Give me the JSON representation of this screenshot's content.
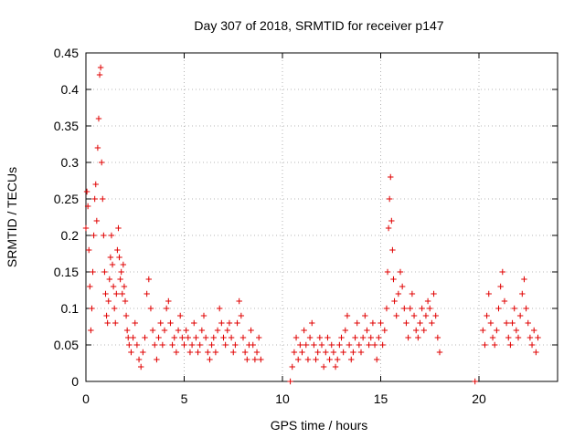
{
  "chart_data": {
    "type": "scatter",
    "title": "Day 307 of 2018, SRMTID for receiver p147",
    "xlabel": "GPS time / hours",
    "ylabel": "SRMTID / TECUs",
    "xlim": [
      0,
      24
    ],
    "ylim": [
      0,
      0.45
    ],
    "grid": true,
    "x_ticks": [
      0,
      5,
      10,
      15,
      20
    ],
    "x_tick_labels": [
      "0",
      "5",
      "10",
      "15",
      "20"
    ],
    "y_ticks": [
      0,
      0.05,
      0.1,
      0.15,
      0.2,
      0.25,
      0.3,
      0.35,
      0.4,
      0.45
    ],
    "y_tick_labels": [
      "0",
      "0.05",
      "0.1",
      "0.15",
      "0.2",
      "0.25",
      "0.3",
      "0.35",
      "0.4",
      "0.45"
    ],
    "marker_color": "#e00000",
    "marker": "plus",
    "series": [
      {
        "name": "SRMTID",
        "points": [
          [
            0.0,
            0.21
          ],
          [
            0.05,
            0.26
          ],
          [
            0.1,
            0.24
          ],
          [
            0.15,
            0.18
          ],
          [
            0.2,
            0.13
          ],
          [
            0.25,
            0.07
          ],
          [
            0.3,
            0.1
          ],
          [
            0.35,
            0.15
          ],
          [
            0.4,
            0.2
          ],
          [
            0.45,
            0.25
          ],
          [
            0.5,
            0.27
          ],
          [
            0.55,
            0.22
          ],
          [
            0.6,
            0.32
          ],
          [
            0.65,
            0.36
          ],
          [
            0.7,
            0.42
          ],
          [
            0.75,
            0.43
          ],
          [
            0.8,
            0.3
          ],
          [
            0.85,
            0.25
          ],
          [
            0.9,
            0.2
          ],
          [
            0.95,
            0.15
          ],
          [
            1.0,
            0.12
          ],
          [
            1.05,
            0.09
          ],
          [
            1.1,
            0.08
          ],
          [
            1.15,
            0.11
          ],
          [
            1.2,
            0.14
          ],
          [
            1.25,
            0.17
          ],
          [
            1.3,
            0.2
          ],
          [
            1.35,
            0.16
          ],
          [
            1.4,
            0.13
          ],
          [
            1.45,
            0.1
          ],
          [
            1.5,
            0.08
          ],
          [
            1.55,
            0.12
          ],
          [
            1.6,
            0.18
          ],
          [
            1.65,
            0.21
          ],
          [
            1.7,
            0.17
          ],
          [
            1.75,
            0.14
          ],
          [
            1.8,
            0.15
          ],
          [
            1.85,
            0.12
          ],
          [
            1.9,
            0.16
          ],
          [
            1.95,
            0.13
          ],
          [
            2.0,
            0.11
          ],
          [
            2.05,
            0.09
          ],
          [
            2.1,
            0.07
          ],
          [
            2.15,
            0.06
          ],
          [
            2.2,
            0.05
          ],
          [
            2.3,
            0.04
          ],
          [
            2.4,
            0.06
          ],
          [
            2.5,
            0.08
          ],
          [
            2.6,
            0.05
          ],
          [
            2.7,
            0.03
          ],
          [
            2.8,
            0.02
          ],
          [
            2.9,
            0.04
          ],
          [
            3.0,
            0.06
          ],
          [
            3.1,
            0.12
          ],
          [
            3.2,
            0.14
          ],
          [
            3.3,
            0.1
          ],
          [
            3.4,
            0.07
          ],
          [
            3.5,
            0.05
          ],
          [
            3.6,
            0.03
          ],
          [
            3.7,
            0.06
          ],
          [
            3.8,
            0.08
          ],
          [
            3.9,
            0.05
          ],
          [
            4.0,
            0.07
          ],
          [
            4.1,
            0.1
          ],
          [
            4.2,
            0.11
          ],
          [
            4.3,
            0.08
          ],
          [
            4.4,
            0.05
          ],
          [
            4.5,
            0.06
          ],
          [
            4.6,
            0.04
          ],
          [
            4.7,
            0.07
          ],
          [
            4.8,
            0.09
          ],
          [
            4.9,
            0.06
          ],
          [
            5.0,
            0.05
          ],
          [
            5.1,
            0.07
          ],
          [
            5.2,
            0.06
          ],
          [
            5.3,
            0.04
          ],
          [
            5.4,
            0.05
          ],
          [
            5.5,
            0.08
          ],
          [
            5.6,
            0.06
          ],
          [
            5.7,
            0.04
          ],
          [
            5.8,
            0.05
          ],
          [
            5.9,
            0.07
          ],
          [
            6.0,
            0.09
          ],
          [
            6.1,
            0.06
          ],
          [
            6.2,
            0.04
          ],
          [
            6.3,
            0.03
          ],
          [
            6.4,
            0.05
          ],
          [
            6.5,
            0.06
          ],
          [
            6.6,
            0.04
          ],
          [
            6.7,
            0.07
          ],
          [
            6.8,
            0.1
          ],
          [
            6.9,
            0.08
          ],
          [
            7.0,
            0.06
          ],
          [
            7.1,
            0.05
          ],
          [
            7.2,
            0.07
          ],
          [
            7.3,
            0.08
          ],
          [
            7.4,
            0.06
          ],
          [
            7.5,
            0.04
          ],
          [
            7.6,
            0.05
          ],
          [
            7.7,
            0.08
          ],
          [
            7.8,
            0.11
          ],
          [
            7.9,
            0.09
          ],
          [
            8.0,
            0.06
          ],
          [
            8.1,
            0.04
          ],
          [
            8.2,
            0.03
          ],
          [
            8.3,
            0.05
          ],
          [
            8.4,
            0.07
          ],
          [
            8.5,
            0.05
          ],
          [
            8.6,
            0.03
          ],
          [
            8.7,
            0.04
          ],
          [
            8.8,
            0.06
          ],
          [
            8.9,
            0.03
          ],
          [
            10.4,
            0.0
          ],
          [
            10.5,
            0.02
          ],
          [
            10.6,
            0.04
          ],
          [
            10.7,
            0.06
          ],
          [
            10.8,
            0.03
          ],
          [
            10.9,
            0.05
          ],
          [
            11.0,
            0.04
          ],
          [
            11.1,
            0.07
          ],
          [
            11.2,
            0.05
          ],
          [
            11.3,
            0.03
          ],
          [
            11.4,
            0.06
          ],
          [
            11.5,
            0.08
          ],
          [
            11.6,
            0.05
          ],
          [
            11.7,
            0.03
          ],
          [
            11.8,
            0.04
          ],
          [
            11.9,
            0.06
          ],
          [
            12.0,
            0.05
          ],
          [
            12.1,
            0.02
          ],
          [
            12.2,
            0.04
          ],
          [
            12.3,
            0.06
          ],
          [
            12.4,
            0.03
          ],
          [
            12.5,
            0.05
          ],
          [
            12.6,
            0.04
          ],
          [
            12.7,
            0.02
          ],
          [
            12.8,
            0.03
          ],
          [
            12.9,
            0.05
          ],
          [
            13.0,
            0.06
          ],
          [
            13.1,
            0.04
          ],
          [
            13.2,
            0.07
          ],
          [
            13.3,
            0.09
          ],
          [
            13.4,
            0.05
          ],
          [
            13.5,
            0.03
          ],
          [
            13.6,
            0.04
          ],
          [
            13.7,
            0.06
          ],
          [
            13.8,
            0.08
          ],
          [
            13.9,
            0.05
          ],
          [
            14.0,
            0.04
          ],
          [
            14.1,
            0.06
          ],
          [
            14.2,
            0.09
          ],
          [
            14.3,
            0.07
          ],
          [
            14.4,
            0.05
          ],
          [
            14.5,
            0.06
          ],
          [
            14.6,
            0.08
          ],
          [
            14.7,
            0.05
          ],
          [
            14.8,
            0.03
          ],
          [
            14.9,
            0.06
          ],
          [
            15.0,
            0.08
          ],
          [
            15.1,
            0.05
          ],
          [
            15.2,
            0.07
          ],
          [
            15.3,
            0.1
          ],
          [
            15.35,
            0.15
          ],
          [
            15.4,
            0.21
          ],
          [
            15.45,
            0.25
          ],
          [
            15.5,
            0.28
          ],
          [
            15.55,
            0.22
          ],
          [
            15.6,
            0.18
          ],
          [
            15.65,
            0.14
          ],
          [
            15.7,
            0.11
          ],
          [
            15.8,
            0.09
          ],
          [
            15.9,
            0.12
          ],
          [
            16.0,
            0.15
          ],
          [
            16.1,
            0.13
          ],
          [
            16.2,
            0.1
          ],
          [
            16.3,
            0.08
          ],
          [
            16.4,
            0.06
          ],
          [
            16.5,
            0.1
          ],
          [
            16.6,
            0.12
          ],
          [
            16.7,
            0.09
          ],
          [
            16.8,
            0.07
          ],
          [
            16.9,
            0.06
          ],
          [
            17.0,
            0.08
          ],
          [
            17.1,
            0.1
          ],
          [
            17.2,
            0.07
          ],
          [
            17.3,
            0.09
          ],
          [
            17.4,
            0.11
          ],
          [
            17.5,
            0.1
          ],
          [
            17.6,
            0.08
          ],
          [
            17.7,
            0.12
          ],
          [
            17.8,
            0.09
          ],
          [
            17.9,
            0.06
          ],
          [
            18.0,
            0.04
          ],
          [
            19.8,
            0.0
          ],
          [
            20.2,
            0.07
          ],
          [
            20.3,
            0.05
          ],
          [
            20.4,
            0.09
          ],
          [
            20.5,
            0.12
          ],
          [
            20.6,
            0.08
          ],
          [
            20.7,
            0.06
          ],
          [
            20.8,
            0.05
          ],
          [
            20.9,
            0.07
          ],
          [
            21.0,
            0.1
          ],
          [
            21.1,
            0.13
          ],
          [
            21.2,
            0.15
          ],
          [
            21.3,
            0.11
          ],
          [
            21.4,
            0.08
          ],
          [
            21.5,
            0.06
          ],
          [
            21.6,
            0.05
          ],
          [
            21.7,
            0.08
          ],
          [
            21.8,
            0.1
          ],
          [
            21.9,
            0.07
          ],
          [
            22.0,
            0.06
          ],
          [
            22.1,
            0.09
          ],
          [
            22.2,
            0.12
          ],
          [
            22.3,
            0.14
          ],
          [
            22.4,
            0.1
          ],
          [
            22.5,
            0.08
          ],
          [
            22.6,
            0.06
          ],
          [
            22.7,
            0.05
          ],
          [
            22.8,
            0.07
          ],
          [
            22.9,
            0.04
          ],
          [
            23.0,
            0.06
          ]
        ]
      }
    ]
  }
}
